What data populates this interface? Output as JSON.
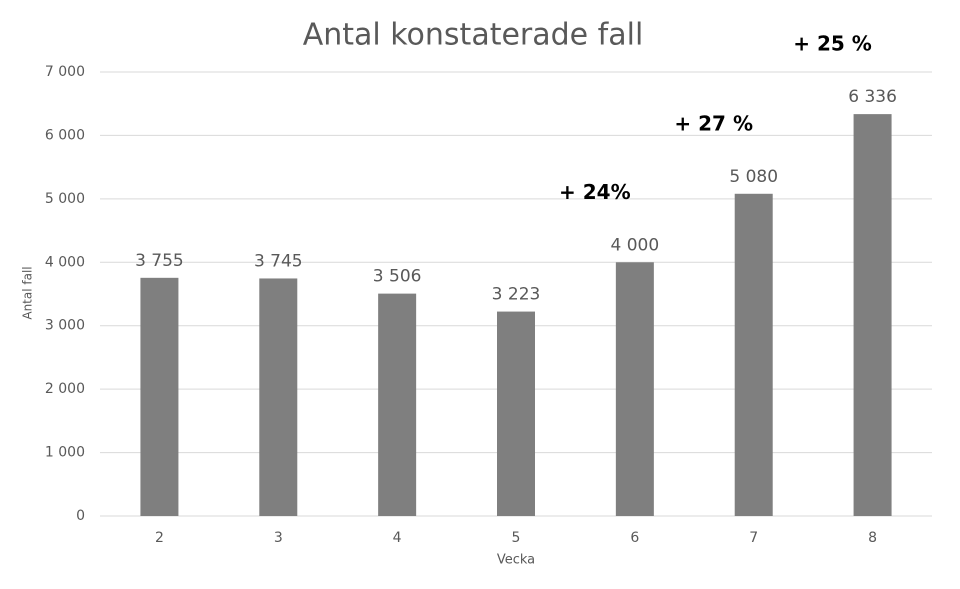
{
  "chart_data": {
    "type": "bar",
    "title": "Antal konstaterade fall",
    "x_label": "Vecka",
    "y_label": "Antal fall",
    "categories": [
      "2",
      "3",
      "4",
      "5",
      "6",
      "7",
      "8"
    ],
    "values": [
      3755,
      3745,
      3506,
      3223,
      4000,
      5080,
      6336
    ],
    "value_labels": [
      "3 755",
      "3 745",
      "3 506",
      "3 223",
      "4 000",
      "5 080",
      "6 336"
    ],
    "color": "#7f7f7f",
    "ylim": [
      0,
      7000
    ],
    "yticks": [
      0,
      {
        "value": 1000,
        "label": "1 000"
      },
      {
        "value": 2000,
        "label": "2 000"
      },
      {
        "value": 3000,
        "label": "3 000"
      },
      {
        "value": 4000,
        "label": "4 000"
      },
      {
        "value": 5000,
        "label": "5 000"
      },
      {
        "value": 6000,
        "label": "6 000"
      },
      {
        "value": 7000,
        "label": "7 000"
      }
    ],
    "grid": true,
    "annotations": [
      {
        "text": "+ 24%",
        "category": "6"
      },
      {
        "text": "+ 27 %",
        "category": "7"
      },
      {
        "text": "+ 25 %",
        "category": "8"
      }
    ]
  }
}
